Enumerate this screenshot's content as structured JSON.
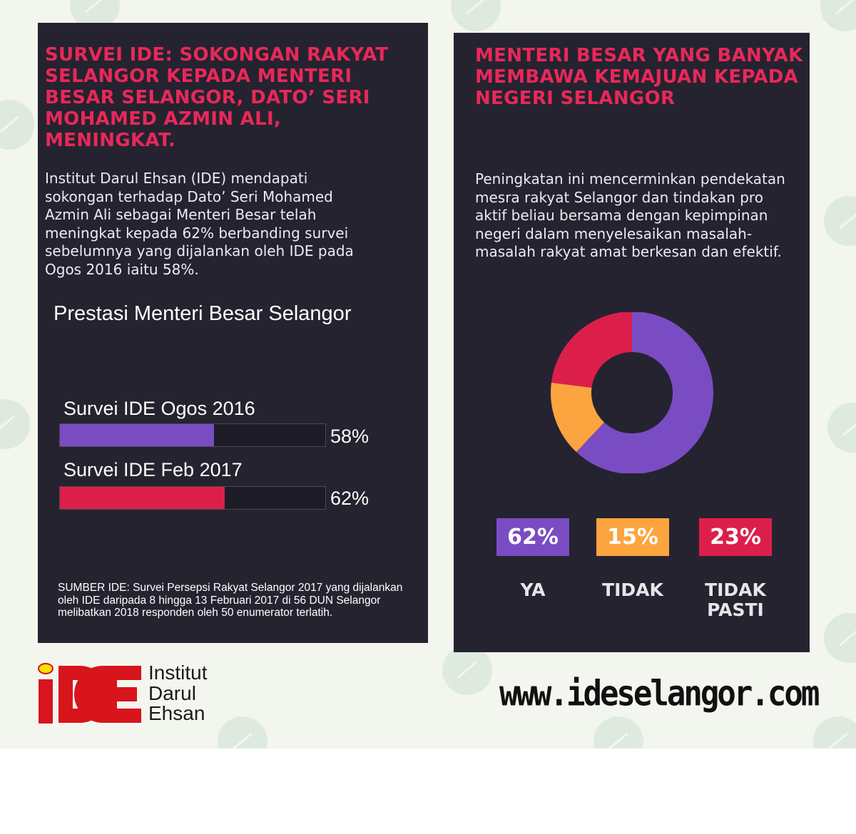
{
  "left_panel": {
    "headline": "SURVEI IDE: SOKONGAN RAKYAT SELANGOR KEPADA MENTERI BESAR SELANGOR, DATO’ SERI MOHAMED AZMIN ALI, MENINGKAT.",
    "body": "Institut Darul Ehsan (IDE) mendapati sokongan terhadap Dato’ Seri Mohamed Azmin Ali sebagai Menteri Besar telah meningkat kepada 62% berbanding survei sebelumnya yang dijalankan oleh IDE pada Ogos 2016 iaitu 58%.",
    "source_note": "SUMBER IDE: Survei Persepsi Rakyat Selangor 2017 yang dijalankan oleh IDE daripada 8 hingga 13 Februari 2017 di 56 DUN Selangor melibatkan 2018 responden oleh 50 enumerator terlatih."
  },
  "right_panel": {
    "headline": "MENTERI BESAR YANG BANYAK MEMBAWA KEMAJUAN KEPADA NEGERI SELANGOR",
    "body": "Peningkatan ini mencerminkan pendekatan mesra rakyat Selangor dan tindakan pro aktif beliau bersama dengan kepimpinan negeri dalam menyelesaikan masalah-masalah rakyat amat berkesan dan efektif."
  },
  "chart_data": [
    {
      "type": "bar",
      "title": "Prestasi Menteri Besar Selangor",
      "categories": [
        "Survei IDE Ogos 2016",
        "Survei IDE Feb 2017"
      ],
      "values": [
        58,
        62
      ],
      "value_labels": [
        "58%",
        "62%"
      ],
      "colors": [
        "#7a4cc3",
        "#dc1f4a"
      ],
      "ylim": [
        0,
        100
      ]
    },
    {
      "type": "pie",
      "categories": [
        "YA",
        "TIDAK",
        "TIDAK PASTI"
      ],
      "values": [
        62,
        15,
        23
      ],
      "value_labels": [
        "62%",
        "15%",
        "23%"
      ],
      "colors": [
        "#7a4cc3",
        "#fca43f",
        "#dc1f4a"
      ]
    }
  ],
  "footer": {
    "logo_text": [
      "Institut",
      "Darul",
      "Ehsan"
    ],
    "website": "www.ideselangor.com"
  }
}
